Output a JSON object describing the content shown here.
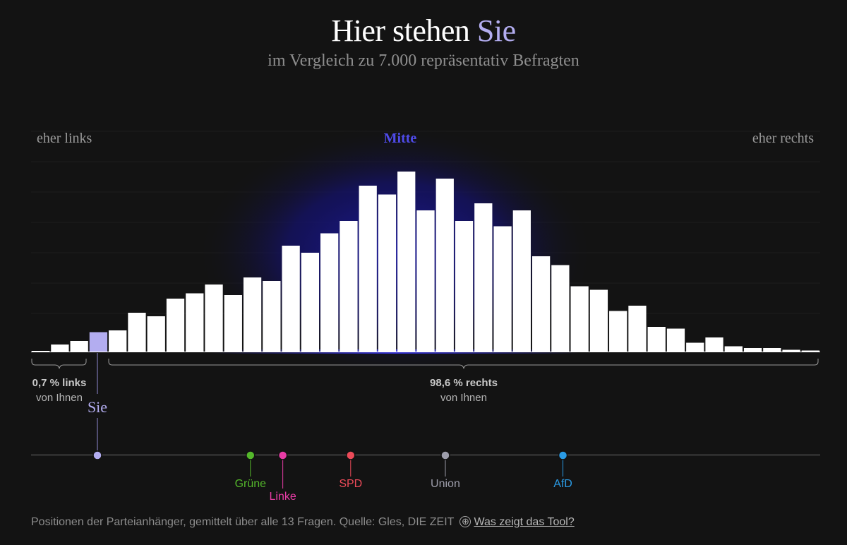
{
  "header": {
    "title_prefix": "Hier stehen ",
    "title_highlight": "Sie",
    "subtitle": "im Vergleich zu 7.000 repräsentativ Befragten"
  },
  "colors": {
    "background": "#131313",
    "bar": "#ffffff",
    "user_bar": "#b3adf0",
    "glow": "#1a1a8c",
    "mid_label": "#4f4bea"
  },
  "chart_data": {
    "type": "bar",
    "title": "Hier stehen Sie",
    "subtitle": "im Vergleich zu 7.000 repräsentativ Befragten",
    "xlabel_left": "eher links",
    "xlabel_center": "Mitte",
    "xlabel_right": "eher rechts",
    "ylim": [
      0,
      100
    ],
    "values": [
      0.4,
      4,
      6,
      11,
      12,
      22,
      20,
      30,
      33,
      38,
      32,
      42,
      40,
      60,
      56,
      67,
      74,
      94,
      89,
      102,
      80,
      98,
      74,
      84,
      71,
      80,
      54,
      49,
      37,
      35,
      23,
      26,
      14,
      13,
      5,
      8,
      3,
      2,
      2,
      1,
      0.6
    ],
    "user_bin_index": 3,
    "left_stat": {
      "bold": "0,7 % links",
      "sub": "von Ihnen"
    },
    "right_stat": {
      "bold": "98,6 % rechts",
      "sub": "von Ihnen"
    },
    "user_label": "Sie",
    "parties": [
      {
        "name": "Grüne",
        "color": "#54b72b",
        "pos": 0.278,
        "low": false
      },
      {
        "name": "Linke",
        "color": "#e83ca6",
        "pos": 0.319,
        "low": true
      },
      {
        "name": "SPD",
        "color": "#ec4b59",
        "pos": 0.405,
        "low": false
      },
      {
        "name": "Union",
        "color": "#9d9daa",
        "pos": 0.525,
        "low": false
      },
      {
        "name": "AfD",
        "color": "#2a9be5",
        "pos": 0.674,
        "low": false
      }
    ],
    "user_pos": 0.083
  },
  "footer": {
    "source_text": "Positionen der Parteianhänger, gemittelt über alle 13 Fragen. Quelle: Gles, DIE ZEIT",
    "plus_icon": "⊕",
    "link_text": "Was zeigt das Tool?"
  }
}
